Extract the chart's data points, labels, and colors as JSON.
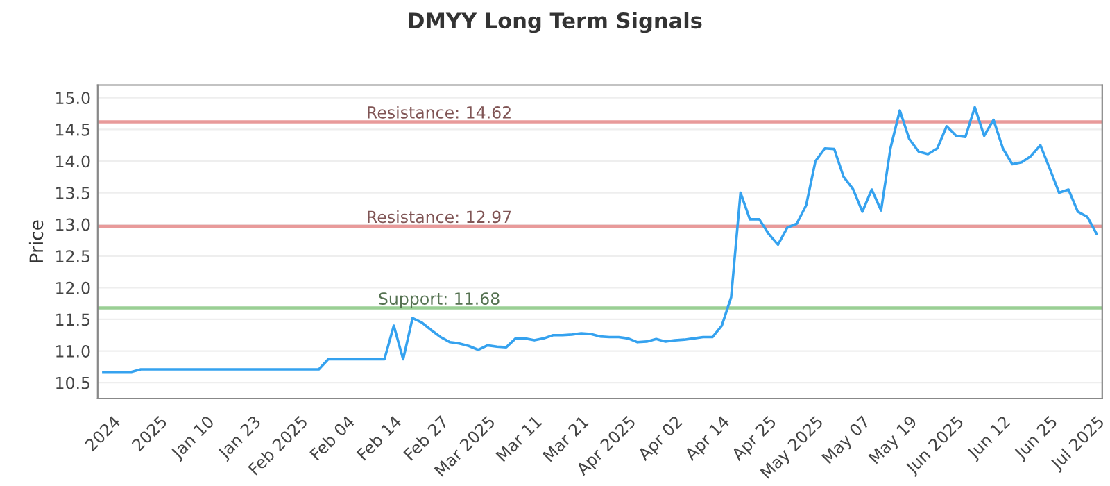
{
  "chart_data": {
    "type": "line",
    "title": "DMYY Long Term Signals",
    "ylabel": "Price",
    "categories": [
      null,
      "2024",
      null,
      null,
      null,
      null,
      "2025",
      null,
      null,
      null,
      null,
      "Jan 10",
      null,
      null,
      null,
      null,
      "Jan 23",
      null,
      null,
      null,
      null,
      "Feb 2025",
      null,
      null,
      null,
      null,
      "Feb 04",
      null,
      null,
      null,
      null,
      "Feb 14",
      null,
      null,
      null,
      null,
      "Feb 27",
      null,
      null,
      null,
      null,
      "Mar 2025",
      null,
      null,
      null,
      null,
      "Mar 11",
      null,
      null,
      null,
      null,
      "Mar 21",
      null,
      null,
      null,
      null,
      "Apr 2025",
      null,
      null,
      null,
      null,
      "Apr 02",
      null,
      null,
      null,
      null,
      "Apr 14",
      null,
      null,
      null,
      null,
      "Apr 25",
      null,
      null,
      null,
      null,
      "May 2025",
      null,
      null,
      null,
      null,
      "May 07",
      null,
      null,
      null,
      null,
      "May 19",
      null,
      null,
      null,
      null,
      "Jun 2025",
      null,
      null,
      null,
      null,
      "Jun 12",
      null,
      null,
      null,
      null,
      "Jun 25",
      null,
      null,
      null,
      null,
      "Jul 2025"
    ],
    "series": [
      {
        "color": "#35a2ef",
        "values": [
          10.67,
          10.67,
          10.67,
          10.67,
          10.71,
          10.71,
          10.71,
          10.71,
          10.71,
          10.71,
          10.71,
          10.71,
          10.71,
          10.71,
          10.71,
          10.71,
          10.71,
          10.71,
          10.71,
          10.71,
          10.71,
          10.71,
          10.71,
          10.71,
          10.87,
          10.87,
          10.87,
          10.87,
          10.87,
          10.87,
          10.87,
          11.4,
          10.87,
          11.52,
          11.45,
          11.33,
          11.22,
          11.14,
          11.12,
          11.08,
          11.02,
          11.09,
          11.07,
          11.06,
          11.2,
          11.2,
          11.17,
          11.2,
          11.25,
          11.25,
          11.26,
          11.28,
          11.27,
          11.23,
          11.22,
          11.22,
          11.2,
          11.14,
          11.15,
          11.19,
          11.15,
          11.17,
          11.18,
          11.2,
          11.22,
          11.22,
          11.4,
          11.85,
          13.5,
          13.08,
          13.08,
          12.85,
          12.68,
          12.95,
          13.01,
          13.3,
          14.0,
          14.2,
          14.19,
          13.75,
          13.56,
          13.2,
          13.55,
          13.22,
          14.2,
          14.8,
          14.35,
          14.15,
          14.11,
          14.2,
          14.55,
          14.4,
          14.38,
          14.85,
          14.4,
          14.65,
          14.2,
          13.95,
          13.98,
          14.08,
          14.25,
          13.88,
          13.5,
          13.55,
          13.2,
          13.12,
          12.85
        ]
      }
    ],
    "ylim": [
      10.25,
      15.2
    ],
    "yticks": [
      10.5,
      {
        "value": 11,
        "label": "11.0"
      },
      11.5,
      {
        "value": 12,
        "label": "12.0"
      },
      12.5,
      {
        "value": 13,
        "label": "13.0"
      },
      13.5,
      {
        "value": 14,
        "label": "14.0"
      },
      14.5,
      {
        "value": 15,
        "label": "15.0"
      }
    ],
    "grid": "y",
    "marker": "none",
    "line_style": "solid",
    "ref_lines": [
      {
        "axis": "y",
        "value": 14.62,
        "label": "Resistance: 14.62",
        "color": "#e89a9a"
      },
      {
        "axis": "y",
        "value": 12.97,
        "label": "Resistance: 12.97",
        "color": "#e89a9a"
      },
      {
        "axis": "y",
        "value": 11.68,
        "label": "Support: 11.68",
        "color": "#9acf94"
      }
    ]
  }
}
